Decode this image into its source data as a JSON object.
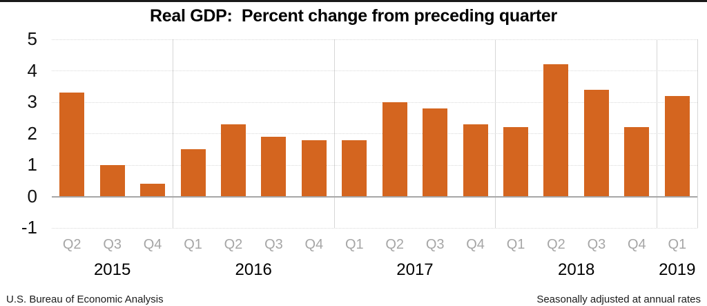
{
  "chart_data": {
    "type": "bar",
    "title": "Real GDP:  Percent change from preceding quarter",
    "categories": [
      "Q2",
      "Q3",
      "Q4",
      "Q1",
      "Q2",
      "Q3",
      "Q4",
      "Q1",
      "Q2",
      "Q3",
      "Q4",
      "Q1",
      "Q2",
      "Q3",
      "Q4",
      "Q1"
    ],
    "values": [
      3.3,
      1.0,
      0.4,
      1.5,
      2.3,
      1.9,
      1.8,
      1.8,
      3.0,
      2.8,
      2.3,
      2.2,
      4.2,
      3.4,
      2.2,
      3.2
    ],
    "year_groups": [
      {
        "label": "2015",
        "count": 3
      },
      {
        "label": "2016",
        "count": 4
      },
      {
        "label": "2017",
        "count": 4
      },
      {
        "label": "2018",
        "count": 4
      },
      {
        "label": "2019",
        "count": 1
      }
    ],
    "yticks": [
      5,
      4,
      3,
      2,
      1,
      0,
      -1
    ],
    "ylim": [
      -1,
      5
    ],
    "grid": true,
    "legend": "none",
    "bar_color": "#d4651f",
    "gridline_color": "#d9d9d9",
    "zero_line_color": "#a6a6a6",
    "separator_color": "#d6d6d6",
    "quarter_label_color": "#a6a6a6",
    "source_left": "U.S. Bureau of Economic Analysis",
    "source_right": "Seasonally adjusted at annual rates"
  }
}
